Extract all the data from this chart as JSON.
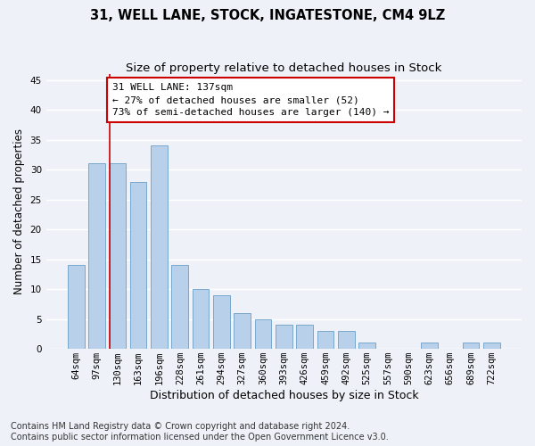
{
  "title1": "31, WELL LANE, STOCK, INGATESTONE, CM4 9LZ",
  "title2": "Size of property relative to detached houses in Stock",
  "xlabel": "Distribution of detached houses by size in Stock",
  "ylabel": "Number of detached properties",
  "categories": [
    "64sqm",
    "97sqm",
    "130sqm",
    "163sqm",
    "196sqm",
    "228sqm",
    "261sqm",
    "294sqm",
    "327sqm",
    "360sqm",
    "393sqm",
    "426sqm",
    "459sqm",
    "492sqm",
    "525sqm",
    "557sqm",
    "590sqm",
    "623sqm",
    "656sqm",
    "689sqm",
    "722sqm"
  ],
  "values": [
    14,
    31,
    31,
    28,
    34,
    14,
    10,
    9,
    6,
    5,
    4,
    4,
    3,
    3,
    1,
    0,
    0,
    1,
    0,
    1,
    1
  ],
  "bar_color": "#b8d0ea",
  "bar_edge_color": "#6a9fc8",
  "annotation_text_line1": "31 WELL LANE: 137sqm",
  "annotation_text_line2": "← 27% of detached houses are smaller (52)",
  "annotation_text_line3": "73% of semi-detached houses are larger (140) →",
  "annotation_box_facecolor": "#ffffff",
  "annotation_box_edgecolor": "#cc0000",
  "vline_color": "#cc0000",
  "ylim": [
    0,
    46
  ],
  "yticks": [
    0,
    5,
    10,
    15,
    20,
    25,
    30,
    35,
    40,
    45
  ],
  "footnote1": "Contains HM Land Registry data © Crown copyright and database right 2024.",
  "footnote2": "Contains public sector information licensed under the Open Government Licence v3.0.",
  "bg_color": "#eef2f8",
  "grid_color": "#ffffff",
  "title1_fontsize": 10.5,
  "title2_fontsize": 9.5,
  "xlabel_fontsize": 9,
  "ylabel_fontsize": 8.5,
  "tick_fontsize": 7.5,
  "annotation_fontsize": 8,
  "footnote_fontsize": 7
}
